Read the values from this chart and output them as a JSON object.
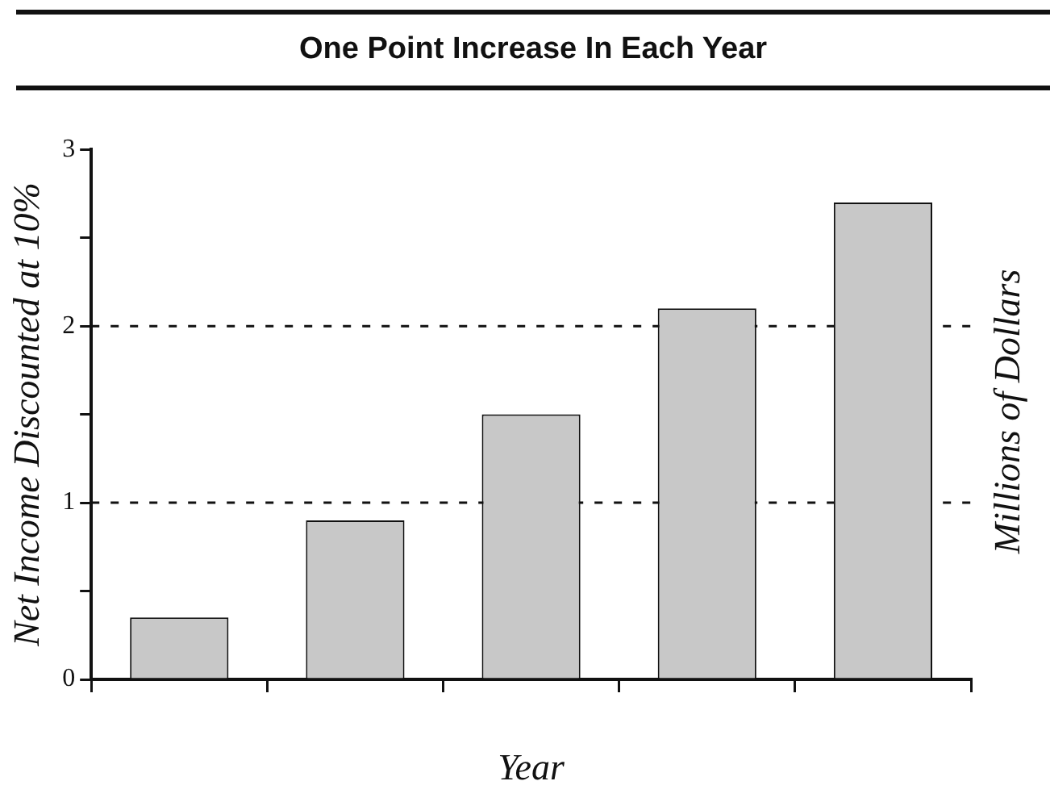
{
  "chart_data": {
    "type": "bar",
    "title": "One Point Increase In Each Year",
    "xlabel": "Year",
    "ylabel": "Net Income Discounted at 10%",
    "y2label": "Millions of Dollars",
    "categories": [
      null,
      null,
      null,
      null,
      null
    ],
    "values": [
      0.35,
      0.9,
      1.5,
      2.1,
      2.7
    ],
    "color": "#c8c8c8",
    "ylim": [
      0,
      3
    ],
    "yticks": [
      0,
      {
        "value": 0.5,
        "label": null
      },
      1,
      {
        "value": 1.5,
        "label": null
      },
      2,
      {
        "value": 2.5,
        "label": null
      },
      3
    ],
    "grid": "y",
    "legend": false
  }
}
